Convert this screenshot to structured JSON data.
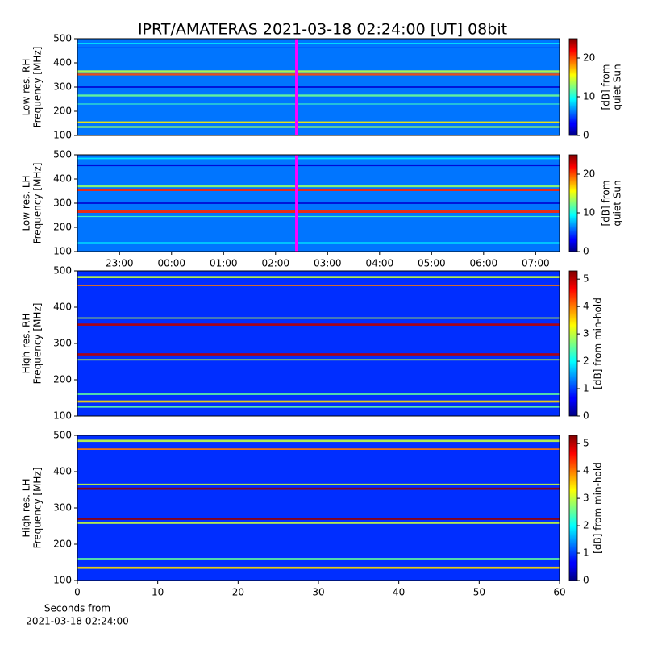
{
  "title": "IPRT/AMATERAS 2021-03-18 02:24:00 [UT]   08bit",
  "chart_data": [
    {
      "type": "heatmap",
      "ylabel": [
        "Low res. RH",
        "Frequency [MHz]"
      ],
      "ylim": [
        100,
        500
      ],
      "yticks": [
        100,
        200,
        300,
        400,
        500
      ],
      "xlim": [
        22.19,
        31.46
      ],
      "colormap": "jet",
      "background_level": 6,
      "colorbar": {
        "label": [
          "[dB] from",
          "quiet Sun"
        ],
        "lim": [
          0,
          25
        ],
        "ticks": [
          0,
          10,
          20
        ]
      },
      "marker_line": {
        "x": 26.4,
        "color": "#ff00ff"
      },
      "bands": [
        {
          "freq": 480,
          "width": 6,
          "level": 9
        },
        {
          "freq": 462,
          "width": 4,
          "level": 3
        },
        {
          "freq": 365,
          "width": 8,
          "level": 14
        },
        {
          "freq": 352,
          "width": 8,
          "level": 20
        },
        {
          "freq": 300,
          "width": 6,
          "level": 2
        },
        {
          "freq": 265,
          "width": 8,
          "level": 12
        },
        {
          "freq": 230,
          "width": 4,
          "level": 11
        },
        {
          "freq": 155,
          "width": 6,
          "level": 16
        },
        {
          "freq": 135,
          "width": 8,
          "level": 13
        }
      ]
    },
    {
      "type": "heatmap",
      "ylabel": [
        "Low res. LH",
        "Frequency [MHz]"
      ],
      "ylim": [
        100,
        500
      ],
      "yticks": [
        100,
        200,
        300,
        400,
        500
      ],
      "xlim": [
        22.19,
        31.46
      ],
      "colormap": "jet",
      "background_level": 6,
      "xticks": [
        {
          "value": 23,
          "label": "23:00"
        },
        {
          "value": 24,
          "label": "00:00"
        },
        {
          "value": 25,
          "label": "01:00"
        },
        {
          "value": 26,
          "label": "02:00"
        },
        {
          "value": 27,
          "label": "03:00"
        },
        {
          "value": 28,
          "label": "04:00"
        },
        {
          "value": 29,
          "label": "05:00"
        },
        {
          "value": 30,
          "label": "06:00"
        },
        {
          "value": 31,
          "label": "07:00"
        }
      ],
      "colorbar": {
        "label": [
          "[dB] from",
          "quiet Sun"
        ],
        "lim": [
          0,
          25
        ],
        "ticks": [
          0,
          10,
          20
        ]
      },
      "marker_line": {
        "x": 26.4,
        "color": "#ff00ff"
      },
      "bands": [
        {
          "freq": 485,
          "width": 6,
          "level": 9
        },
        {
          "freq": 455,
          "width": 4,
          "level": 2
        },
        {
          "freq": 370,
          "width": 8,
          "level": 13
        },
        {
          "freq": 355,
          "width": 10,
          "level": 21
        },
        {
          "freq": 300,
          "width": 6,
          "level": 2
        },
        {
          "freq": 265,
          "width": 10,
          "level": 21
        },
        {
          "freq": 245,
          "width": 4,
          "level": 11
        },
        {
          "freq": 135,
          "width": 8,
          "level": 9
        }
      ]
    },
    {
      "type": "heatmap",
      "ylabel": [
        "High res. RH",
        "Frequency [MHz]"
      ],
      "ylim": [
        100,
        500
      ],
      "yticks": [
        100,
        200,
        300,
        400,
        500
      ],
      "xlim": [
        0,
        60
      ],
      "colormap": "jet",
      "background_level": 0.9,
      "colorbar": {
        "label": [
          "[dB] from min-hold"
        ],
        "lim": [
          0,
          5.3
        ],
        "ticks": [
          0,
          1,
          2,
          3,
          4,
          5
        ]
      },
      "bands": [
        {
          "freq": 483,
          "width": 6,
          "level": 3
        },
        {
          "freq": 460,
          "width": 4,
          "level": 4
        },
        {
          "freq": 370,
          "width": 4,
          "level": 3
        },
        {
          "freq": 352,
          "width": 6,
          "level": 5
        },
        {
          "freq": 270,
          "width": 6,
          "level": 5
        },
        {
          "freq": 255,
          "width": 4,
          "level": 3
        },
        {
          "freq": 160,
          "width": 4,
          "level": 2.5
        },
        {
          "freq": 140,
          "width": 6,
          "level": 3.5
        },
        {
          "freq": 125,
          "width": 4,
          "level": 2.5
        }
      ]
    },
    {
      "type": "heatmap",
      "ylabel": [
        "High res. LH",
        "Frequency [MHz]"
      ],
      "ylim": [
        100,
        500
      ],
      "yticks": [
        100,
        200,
        300,
        400,
        500
      ],
      "xlim": [
        0,
        60
      ],
      "xticks": [
        0,
        10,
        20,
        30,
        40,
        50,
        60
      ],
      "xlabel": [
        "Seconds from",
        "2021-03-18 02:24:00"
      ],
      "colormap": "jet",
      "background_level": 0.9,
      "colorbar": {
        "label": [
          "[dB] from min-hold"
        ],
        "lim": [
          0,
          5.3
        ],
        "ticks": [
          0,
          1,
          2,
          3,
          4,
          5
        ]
      },
      "bands": [
        {
          "freq": 485,
          "width": 6,
          "level": 3
        },
        {
          "freq": 462,
          "width": 4,
          "level": 4
        },
        {
          "freq": 365,
          "width": 4,
          "level": 3
        },
        {
          "freq": 353,
          "width": 6,
          "level": 5.2
        },
        {
          "freq": 270,
          "width": 6,
          "level": 5.2
        },
        {
          "freq": 258,
          "width": 4,
          "level": 3
        },
        {
          "freq": 160,
          "width": 4,
          "level": 2.5
        },
        {
          "freq": 135,
          "width": 6,
          "level": 3.5
        }
      ]
    }
  ]
}
